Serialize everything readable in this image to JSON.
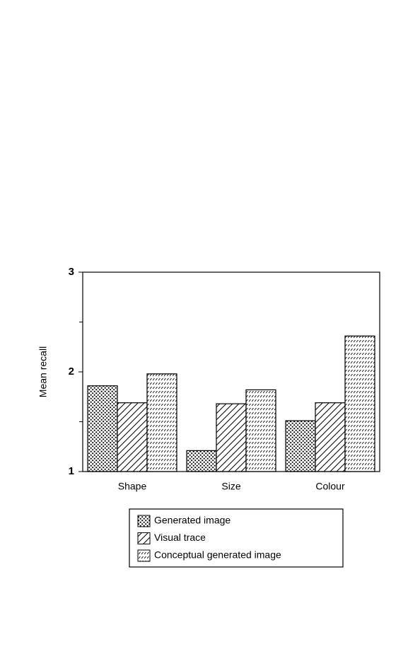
{
  "chart_data": {
    "type": "bar",
    "y_label": "Mean recall",
    "categories": [
      "Shape",
      "Size",
      "Colour"
    ],
    "series": [
      {
        "name": "Generated image",
        "color": "#000000",
        "pattern": "dots",
        "values": [
          1.86,
          1.21,
          1.51
        ]
      },
      {
        "name": "Visual trace",
        "color": "#000000",
        "pattern": "diagonal",
        "values": [
          1.69,
          1.68,
          1.69
        ]
      },
      {
        "name": "Conceptual generated image",
        "color": "#000000",
        "pattern": "dashes",
        "values": [
          1.98,
          1.82,
          2.36
        ]
      }
    ],
    "ylim": [
      1,
      3
    ],
    "yticks": [
      1,
      2,
      3
    ],
    "minor_yticks": [
      1.5,
      2.5
    ],
    "legend": "bottom"
  }
}
